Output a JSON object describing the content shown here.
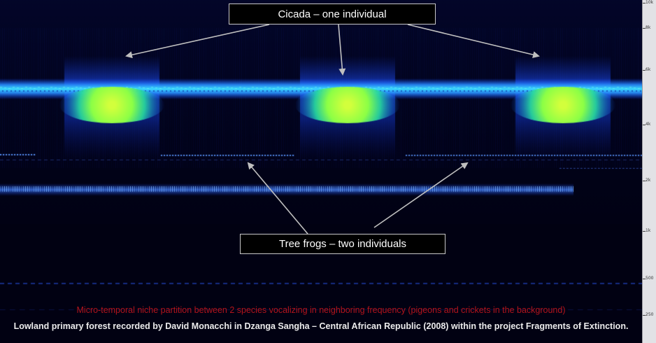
{
  "annotations": {
    "cicada_label": "Cicada – one individual",
    "frog_label": "Tree frogs – two individuals"
  },
  "captions": {
    "line1": "Micro-temporal niche partition between 2 species vocalizing in neighboring frequency (pigeons and crickets in the background)",
    "line2": "Lowland primary forest recorded by David Monacchi in Dzanga Sangha – Central African Republic (2008) within the project Fragments of Extinction."
  },
  "frequency_axis": {
    "ticks": [
      "10k",
      "8k",
      "6k",
      "4k",
      "2k",
      "1k",
      "500",
      "250"
    ]
  },
  "colors": {
    "background": "#010112",
    "caption_red": "#b3141c",
    "arrow": "#bfbfbf",
    "cicada_core": "#b4ff3c",
    "band_blue": "#1e5aff"
  }
}
